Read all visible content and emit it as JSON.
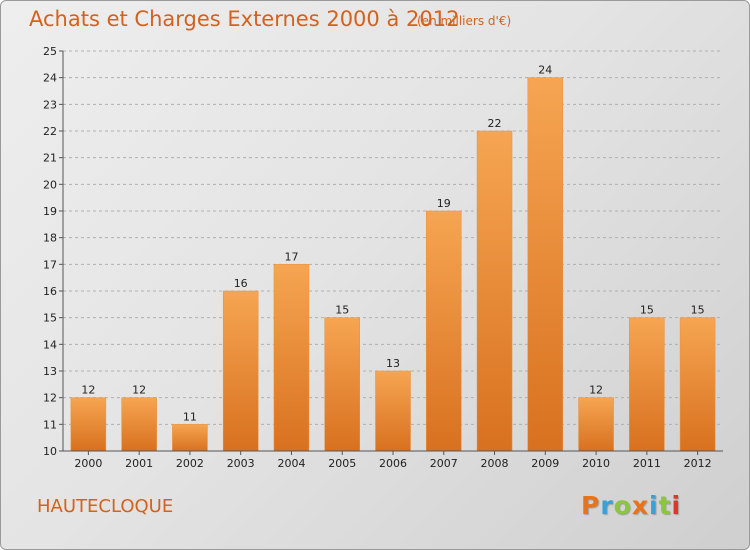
{
  "header": {
    "title": "Achats et Charges Externes 2000 à 2012",
    "subtitle": "(en milliers d'€)"
  },
  "footer": {
    "commune": "HAUTECLOQUE",
    "logo": "Proxiti"
  },
  "colors": {
    "title": "#d4621c",
    "bar_light": "#f6a552",
    "bar_dark": "#d8711f",
    "grid": "#b0b0b0",
    "logo_letters": [
      "#e8731a",
      "#3aa0d8",
      "#8cc63f",
      "#e8731a",
      "#3aa0d8",
      "#8cc63f",
      "#d9382b"
    ]
  },
  "chart_data": {
    "type": "bar",
    "title": "Achats et Charges Externes 2000 à 2012",
    "subtitle": "(en milliers d'€)",
    "categories": [
      "2000",
      "2001",
      "2002",
      "2003",
      "2004",
      "2005",
      "2006",
      "2007",
      "2008",
      "2009",
      "2010",
      "2011",
      "2012"
    ],
    "values": [
      12,
      12,
      11,
      16,
      17,
      15,
      13,
      19,
      22,
      24,
      12,
      15,
      15
    ],
    "value_labels": [
      "12",
      "12",
      "11",
      "16",
      "17",
      "15",
      "13",
      "19",
      "22",
      "24",
      "12",
      "15",
      "15"
    ],
    "y_ticks": [
      "10",
      "11",
      "12",
      "13",
      "14",
      "15",
      "16",
      "17",
      "18",
      "19",
      "20",
      "21",
      "22",
      "23",
      "24",
      "25"
    ],
    "ylim": [
      10,
      25
    ],
    "xlabel": "",
    "ylabel": "",
    "grid": true,
    "legend": "none"
  }
}
